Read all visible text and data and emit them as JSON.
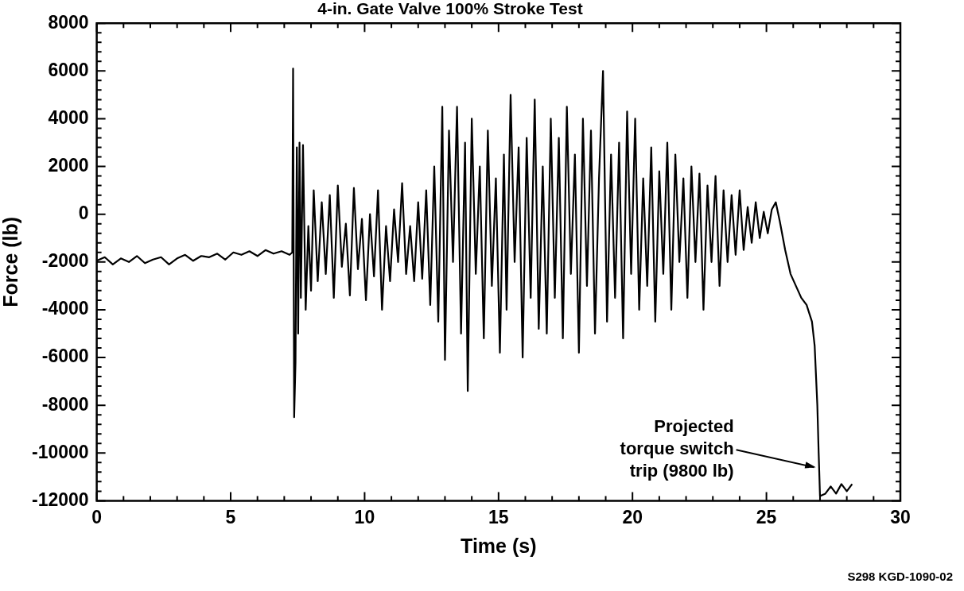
{
  "chart_data": {
    "type": "line",
    "title": "4-in. Gate Valve 100% Stroke Test",
    "xlabel": "Time (s)",
    "ylabel": "Force (lb)",
    "color": "#000000",
    "marker": "none",
    "grid": false,
    "legend": false,
    "xlim": [
      0,
      30
    ],
    "ylim": [
      -12000,
      8000
    ],
    "xticks": [
      0,
      {
        "value": 1,
        "label": null
      },
      {
        "value": 2,
        "label": null
      },
      {
        "value": 3,
        "label": null
      },
      {
        "value": 4,
        "label": null
      },
      5,
      {
        "value": 6,
        "label": null
      },
      {
        "value": 7,
        "label": null
      },
      {
        "value": 8,
        "label": null
      },
      {
        "value": 9,
        "label": null
      },
      10,
      {
        "value": 11,
        "label": null
      },
      {
        "value": 12,
        "label": null
      },
      {
        "value": 13,
        "label": null
      },
      {
        "value": 14,
        "label": null
      },
      15,
      {
        "value": 16,
        "label": null
      },
      {
        "value": 17,
        "label": null
      },
      {
        "value": 18,
        "label": null
      },
      {
        "value": 19,
        "label": null
      },
      20,
      {
        "value": 21,
        "label": null
      },
      {
        "value": 22,
        "label": null
      },
      {
        "value": 23,
        "label": null
      },
      {
        "value": 24,
        "label": null
      },
      25,
      {
        "value": 26,
        "label": null
      },
      {
        "value": 27,
        "label": null
      },
      {
        "value": 28,
        "label": null
      },
      {
        "value": 29,
        "label": null
      },
      30
    ],
    "yticks": [
      -12000,
      {
        "value": -11600,
        "label": null
      },
      {
        "value": -11200,
        "label": null
      },
      {
        "value": -10800,
        "label": null
      },
      {
        "value": -10400,
        "label": null
      },
      -10000,
      {
        "value": -9600,
        "label": null
      },
      {
        "value": -9200,
        "label": null
      },
      {
        "value": -8800,
        "label": null
      },
      {
        "value": -8400,
        "label": null
      },
      -8000,
      {
        "value": -7600,
        "label": null
      },
      {
        "value": -7200,
        "label": null
      },
      {
        "value": -6800,
        "label": null
      },
      {
        "value": -6400,
        "label": null
      },
      -6000,
      {
        "value": -5600,
        "label": null
      },
      {
        "value": -5200,
        "label": null
      },
      {
        "value": -4800,
        "label": null
      },
      {
        "value": -4400,
        "label": null
      },
      -4000,
      {
        "value": -3600,
        "label": null
      },
      {
        "value": -3200,
        "label": null
      },
      {
        "value": -2800,
        "label": null
      },
      {
        "value": -2400,
        "label": null
      },
      -2000,
      {
        "value": -1600,
        "label": null
      },
      {
        "value": -1200,
        "label": null
      },
      {
        "value": -800,
        "label": null
      },
      {
        "value": -400,
        "label": null
      },
      0,
      {
        "value": 400,
        "label": null
      },
      {
        "value": 800,
        "label": null
      },
      {
        "value": 1200,
        "label": null
      },
      {
        "value": 1600,
        "label": null
      },
      2000,
      {
        "value": 2400,
        "label": null
      },
      {
        "value": 2800,
        "label": null
      },
      {
        "value": 3200,
        "label": null
      },
      {
        "value": 3600,
        "label": null
      },
      4000,
      {
        "value": 4400,
        "label": null
      },
      {
        "value": 4800,
        "label": null
      },
      {
        "value": 5200,
        "label": null
      },
      {
        "value": 5600,
        "label": null
      },
      6000,
      {
        "value": 6400,
        "label": null
      },
      {
        "value": 6800,
        "label": null
      },
      {
        "value": 7200,
        "label": null
      },
      {
        "value": 7600,
        "label": null
      },
      8000
    ],
    "x": [
      0,
      0.3,
      0.6,
      0.9,
      1.2,
      1.5,
      1.8,
      2.1,
      2.4,
      2.7,
      3,
      3.3,
      3.6,
      3.9,
      4.2,
      4.5,
      4.8,
      5.1,
      5.4,
      5.7,
      6,
      6.3,
      6.6,
      6.9,
      7.2,
      7.3,
      7.33,
      7.37,
      7.42,
      7.47,
      7.52,
      7.57,
      7.62,
      7.7,
      7.8,
      7.9,
      8,
      8.1,
      8.25,
      8.4,
      8.55,
      8.7,
      8.85,
      9,
      9.15,
      9.3,
      9.45,
      9.6,
      9.75,
      9.9,
      10.05,
      10.2,
      10.35,
      10.5,
      10.65,
      10.8,
      10.95,
      11.1,
      11.25,
      11.4,
      11.55,
      11.7,
      11.85,
      12,
      12.15,
      12.3,
      12.45,
      12.6,
      12.75,
      12.9,
      13,
      13.15,
      13.3,
      13.45,
      13.6,
      13.75,
      13.85,
      14,
      14.15,
      14.3,
      14.45,
      14.6,
      14.75,
      14.9,
      15.05,
      15.2,
      15.3,
      15.45,
      15.6,
      15.75,
      15.9,
      16.05,
      16.2,
      16.35,
      16.5,
      16.65,
      16.8,
      16.95,
      17.1,
      17.25,
      17.4,
      17.55,
      17.7,
      17.85,
      18,
      18.15,
      18.3,
      18.45,
      18.6,
      18.75,
      18.9,
      19.05,
      19.2,
      19.35,
      19.5,
      19.65,
      19.8,
      19.95,
      20.1,
      20.25,
      20.4,
      20.55,
      20.7,
      20.85,
      21,
      21.15,
      21.3,
      21.45,
      21.6,
      21.75,
      21.9,
      22.05,
      22.2,
      22.35,
      22.5,
      22.65,
      22.8,
      22.95,
      23.1,
      23.25,
      23.4,
      23.55,
      23.7,
      23.85,
      24,
      24.15,
      24.3,
      24.45,
      24.6,
      24.75,
      24.9,
      25.05,
      25.2,
      25.35,
      25.5,
      25.7,
      25.9,
      26.1,
      26.3,
      26.5,
      26.7,
      26.8,
      26.9,
      26.95,
      27,
      27.2,
      27.4,
      27.6,
      27.8,
      28,
      28.2
    ],
    "values": [
      -1950,
      -1800,
      -2100,
      -1850,
      -2000,
      -1750,
      -2050,
      -1900,
      -1800,
      -2100,
      -1850,
      -1700,
      -1950,
      -1750,
      -1800,
      -1650,
      -1900,
      -1600,
      -1700,
      -1550,
      -1750,
      -1500,
      -1650,
      -1550,
      -1700,
      -1600,
      6100,
      -8500,
      -6200,
      2800,
      -5000,
      3000,
      -3500,
      2900,
      -4000,
      -500,
      -3200,
      1000,
      -2800,
      500,
      -2500,
      800,
      -3500,
      1200,
      -2200,
      -400,
      -3400,
      1100,
      -2300,
      -200,
      -3600,
      0,
      -2600,
      1000,
      -4000,
      -500,
      -2800,
      200,
      -2000,
      1300,
      -2500,
      -500,
      -2800,
      500,
      -2700,
      1000,
      -3800,
      2000,
      -4500,
      4500,
      -6100,
      3500,
      -2000,
      4500,
      -5000,
      3000,
      -7400,
      4000,
      -2500,
      2000,
      -5200,
      3500,
      -3000,
      1500,
      -5800,
      2500,
      -4000,
      5000,
      -2000,
      2800,
      -6000,
      3200,
      -3500,
      4800,
      -4800,
      2000,
      -5000,
      4000,
      -3500,
      3200,
      -5200,
      4500,
      -2500,
      2500,
      -5800,
      4000,
      -3000,
      3500,
      -5000,
      1500,
      6000,
      -4500,
      2500,
      -3500,
      3000,
      -5200,
      4300,
      -2500,
      4000,
      -4000,
      1500,
      -3000,
      2800,
      -4500,
      1800,
      -2500,
      3000,
      -4000,
      2500,
      -2000,
      1500,
      -3500,
      2000,
      -2000,
      1700,
      -4000,
      1200,
      -2000,
      1600,
      -3000,
      1000,
      -2000,
      800,
      -1700,
      1000,
      -1500,
      300,
      -1200,
      500,
      -1000,
      100,
      -800,
      200,
      500,
      -300,
      -1500,
      -2500,
      -3000,
      -3500,
      -3800,
      -4500,
      -5500,
      -8000,
      -10000,
      -11800,
      -11700,
      -11400,
      -11700,
      -11300,
      -11600,
      -11300
    ],
    "annotations": [
      {
        "text": "Projected\ntorque switch\ntrip (9800 lb)",
        "x": 26.9,
        "y": -10600
      },
      "S298 KGD-1090-02"
    ]
  }
}
